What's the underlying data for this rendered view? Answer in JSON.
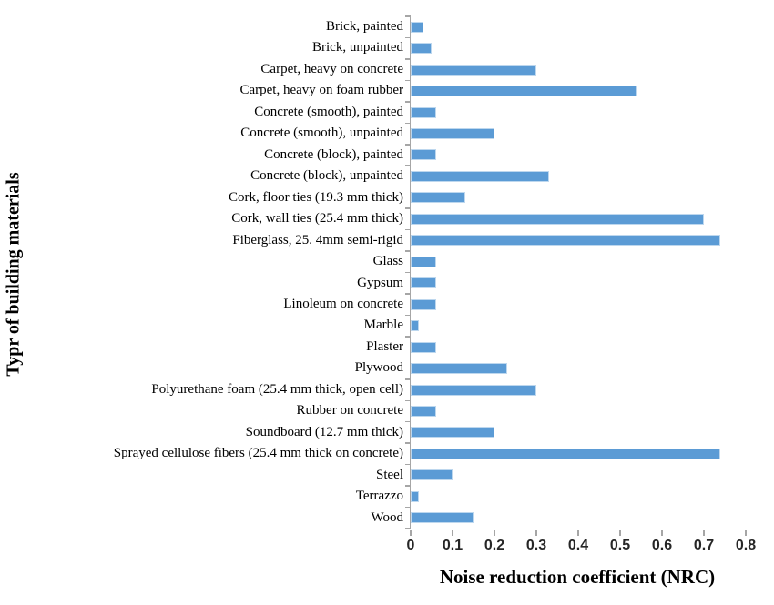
{
  "chart_data": {
    "type": "bar",
    "orientation": "horizontal",
    "title": "",
    "xlabel": "Noise reduction coefficient (NRC)",
    "ylabel": "Typr of building materials",
    "xlim": [
      0,
      0.8
    ],
    "xticks": [
      0,
      0.1,
      0.2,
      0.3,
      0.4,
      0.5,
      0.6,
      0.7,
      0.8
    ],
    "xtick_labels": [
      "0",
      "0.1",
      "0.2",
      "0.3",
      "0.4",
      "0.5",
      "0.6",
      "0.7",
      "0.8"
    ],
    "grid": false,
    "legend": "none",
    "bar_color": "#5B9BD5",
    "bar_border_color": "#BDD7EE",
    "axis_color": "#A6A6A6",
    "categories": [
      "Brick, painted",
      "Brick, unpainted",
      "Carpet, heavy on concrete",
      "Carpet, heavy on foam rubber",
      "Concrete (smooth), painted",
      "Concrete (smooth), unpainted",
      "Concrete (block), painted",
      "Concrete (block), unpainted",
      "Cork, floor ties (19.3 mm thick)",
      "Cork, wall ties (25.4 mm thick)",
      "Fiberglass, 25. 4mm semi-rigid",
      "Glass",
      "Gypsum",
      "Linoleum on concrete",
      "Marble",
      "Plaster",
      "Plywood",
      "Polyurethane foam (25.4 mm thick, open cell)",
      "Rubber on concrete",
      "Soundboard (12.7 mm thick)",
      "Sprayed cellulose fibers (25.4 mm thick on concrete)",
      "Steel",
      "Terrazzo",
      "Wood"
    ],
    "values": [
      0.03,
      0.05,
      0.3,
      0.54,
      0.06,
      0.2,
      0.06,
      0.33,
      0.13,
      0.7,
      0.74,
      0.06,
      0.06,
      0.06,
      0.02,
      0.06,
      0.23,
      0.3,
      0.06,
      0.2,
      0.74,
      0.1,
      0.02,
      0.15
    ]
  }
}
